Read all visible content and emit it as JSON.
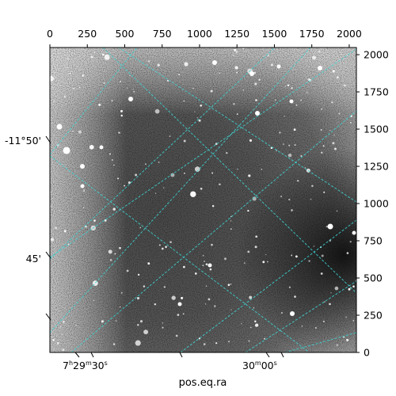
{
  "figure": {
    "xlabel": "pos.eq.ra",
    "grid_color": "#3fd5d5",
    "top_axis": {
      "ticks": [
        "0",
        "250",
        "500",
        "750",
        "1000",
        "1250",
        "1500",
        "1750",
        "2000"
      ],
      "range": [
        0,
        2048
      ]
    },
    "right_axis": {
      "ticks": [
        "0",
        "250",
        "500",
        "750",
        "1000",
        "1250",
        "1500",
        "1750",
        "2000"
      ],
      "range": [
        0,
        2048
      ]
    },
    "dec_labels": [
      {
        "text": "-11°50'"
      },
      {
        "text": "45'"
      }
    ],
    "ra_labels": [
      {
        "h": "7",
        "hs": "h",
        "m": "29",
        "ms": "m",
        "s": "30",
        "ss": "s"
      },
      {
        "m": "30",
        "ms": "m",
        "s": "00",
        "ss": "s"
      }
    ]
  }
}
